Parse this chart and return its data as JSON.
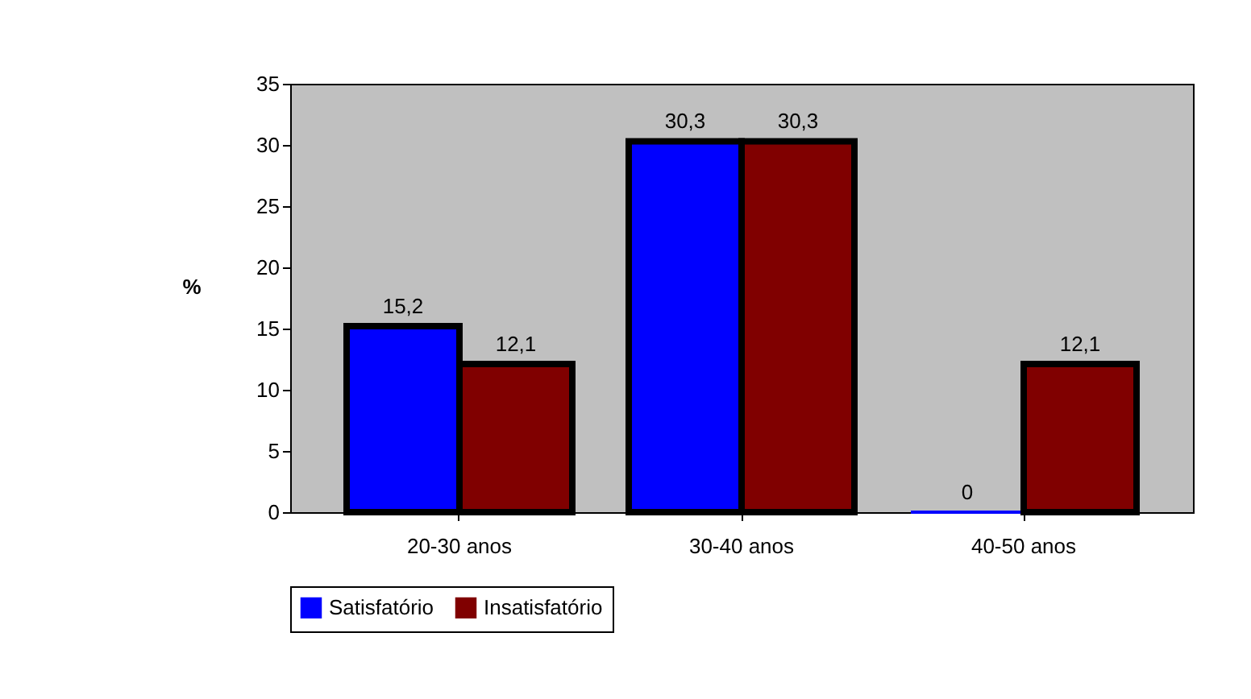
{
  "chart_data": {
    "type": "bar",
    "ylabel": "%",
    "categories": [
      "20-30 anos",
      "30-40 anos",
      "40-50 anos"
    ],
    "series": [
      {
        "name": "Satisfatório",
        "color": "#0000ff",
        "values": [
          15.2,
          30.3,
          0
        ],
        "value_labels": [
          "15,2",
          "30,3",
          "0"
        ]
      },
      {
        "name": "Insatisfatório",
        "color": "#800000",
        "values": [
          12.1,
          30.3,
          12.1
        ],
        "value_labels": [
          "12,1",
          "30,3",
          "12,1"
        ]
      }
    ],
    "ylim": [
      0,
      35
    ],
    "yticks": [
      0,
      5,
      10,
      15,
      20,
      25,
      30,
      35
    ],
    "grid": false,
    "legend": "bottom"
  }
}
